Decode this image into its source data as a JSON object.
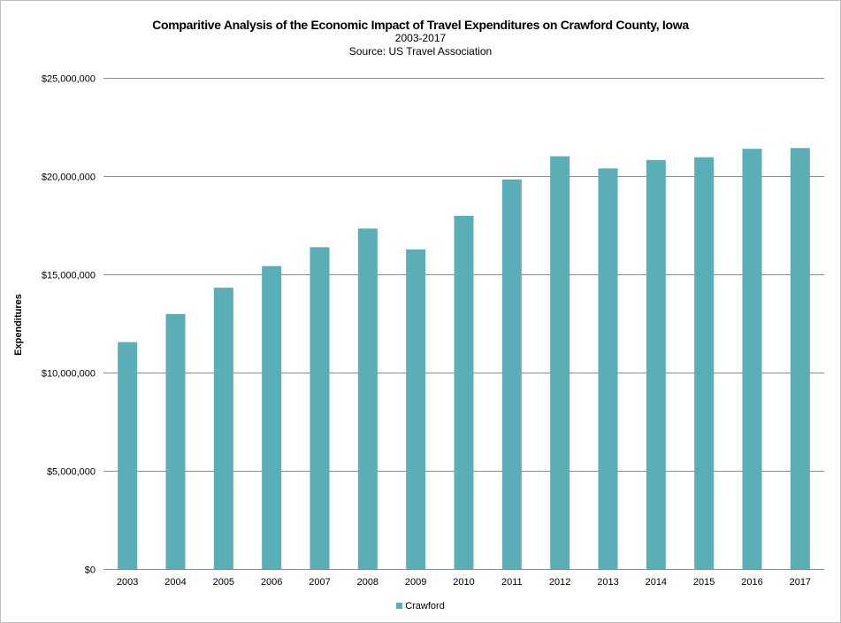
{
  "chart_data": {
    "type": "bar",
    "title": "Comparitive Analysis of the Economic Impact of Travel Expenditures on Crawford County, Iowa",
    "subtitle": "2003-2017",
    "source": "Source: US Travel Association",
    "xlabel": "",
    "ylabel": "Expenditures",
    "categories": [
      "2003",
      "2004",
      "2005",
      "2006",
      "2007",
      "2008",
      "2009",
      "2010",
      "2011",
      "2012",
      "2013",
      "2014",
      "2015",
      "2016",
      "2017"
    ],
    "series": [
      {
        "name": "Crawford",
        "color": "#5aafb7",
        "values": [
          11550000,
          12980000,
          14320000,
          15420000,
          16380000,
          17330000,
          16270000,
          17980000,
          19830000,
          21010000,
          20390000,
          20820000,
          20960000,
          21390000,
          21430000
        ]
      }
    ],
    "ylim": [
      0,
      25000000
    ],
    "yticks": [
      0,
      5000000,
      10000000,
      15000000,
      20000000,
      25000000
    ],
    "ytick_labels": [
      "$0",
      "$5,000,000",
      "$10,000,000",
      "$15,000,000",
      "$20,000,000",
      "$25,000,000"
    ],
    "grid": true,
    "legend_position": "bottom"
  }
}
